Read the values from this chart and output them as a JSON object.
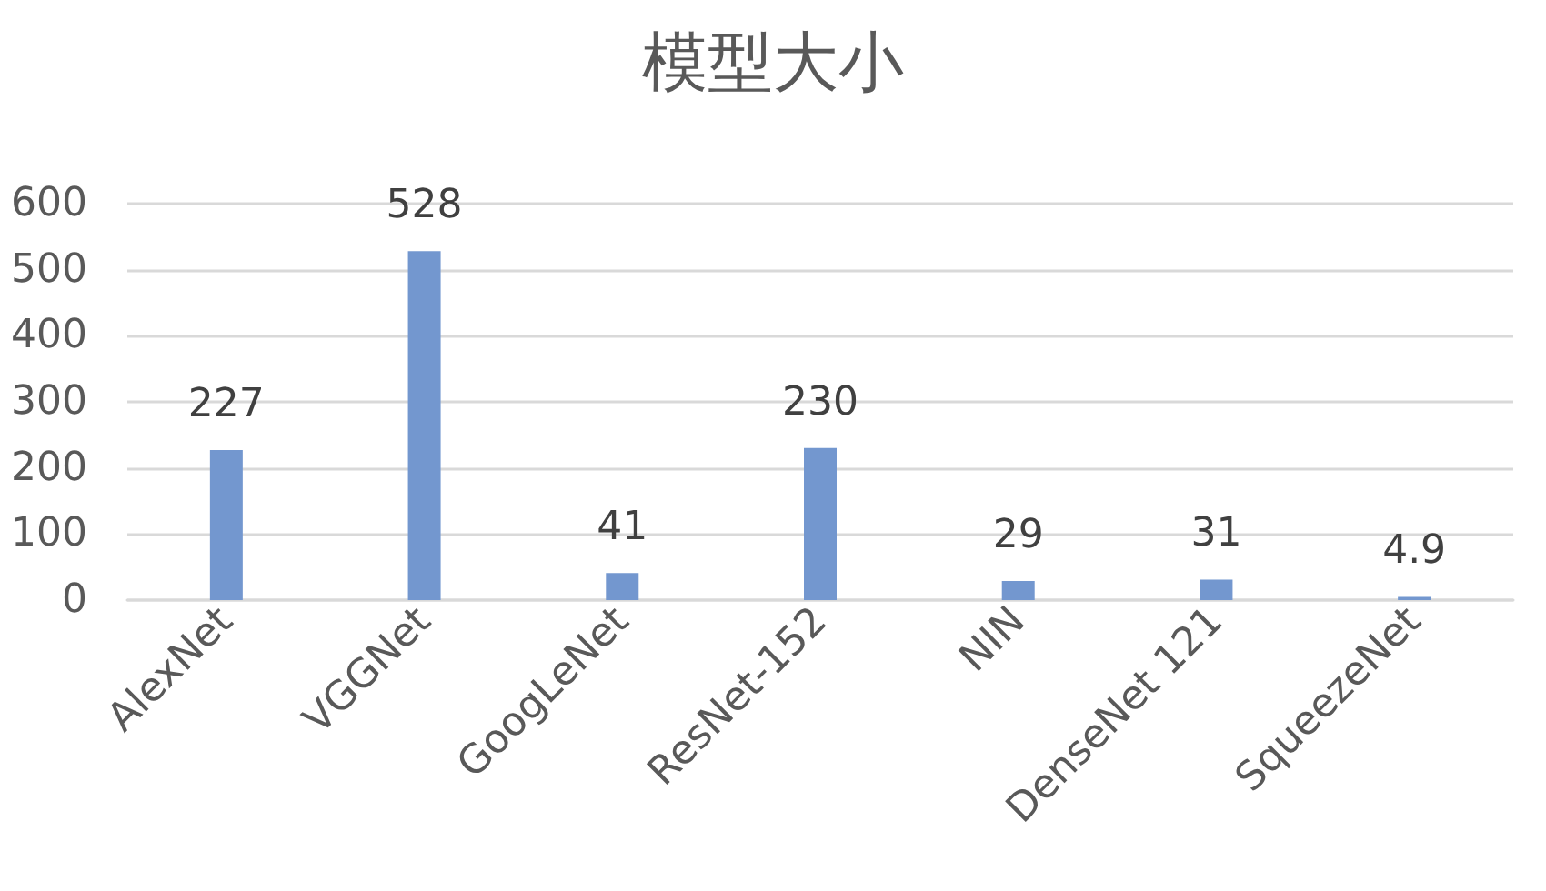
{
  "chart_data": {
    "type": "bar",
    "title": "模型大小",
    "categories": [
      "AlexNet",
      "VGGNet",
      "GoogLeNet",
      "ResNet-152",
      "NIN",
      "DenseNet 121",
      "SqueezeNet"
    ],
    "values": [
      227,
      528,
      41,
      230,
      29,
      31,
      4.9
    ],
    "color": "#7397cf",
    "ylim": [
      0,
      600
    ],
    "yticks": [
      0,
      100,
      200,
      300,
      400,
      500,
      600
    ],
    "grid": "y",
    "data_labels": true
  }
}
